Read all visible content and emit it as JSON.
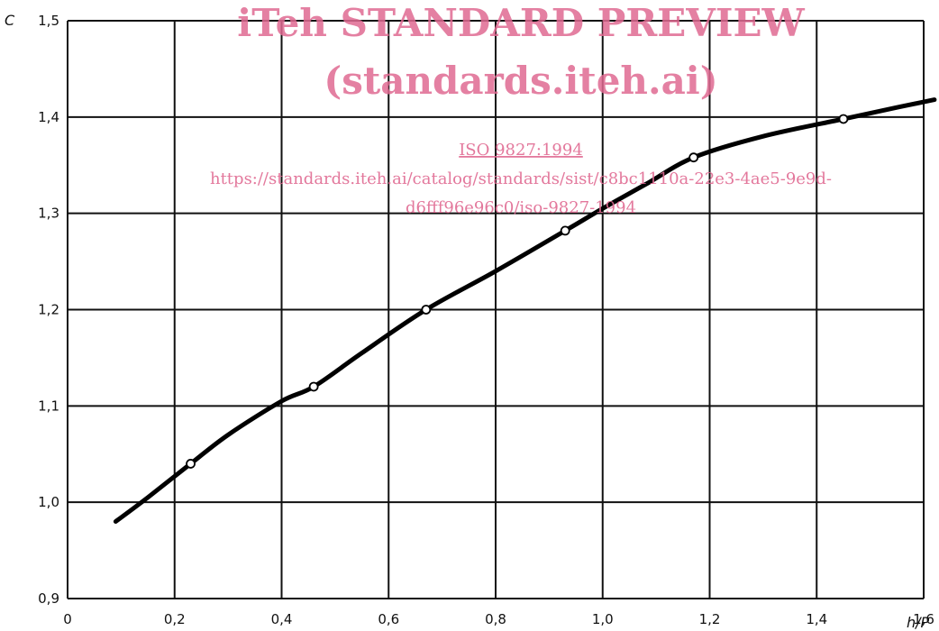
{
  "chart_data": {
    "type": "line",
    "xlabel": "h/P",
    "ylabel": "C",
    "xlim": [
      0,
      1.6
    ],
    "ylim": [
      0.9,
      1.5
    ],
    "grid": true,
    "x_ticks": [
      {
        "value": 0,
        "label": "0"
      },
      {
        "value": 0.2,
        "label": "0,2"
      },
      {
        "value": 0.4,
        "label": "0,4"
      },
      {
        "value": 0.6,
        "label": "0,6"
      },
      {
        "value": 0.8,
        "label": "0,8"
      },
      {
        "value": 1.0,
        "label": "1,0"
      },
      {
        "value": 1.2,
        "label": "1,2"
      },
      {
        "value": 1.4,
        "label": "1,4"
      },
      {
        "value": 1.6,
        "label": "1,6"
      }
    ],
    "y_ticks": [
      {
        "value": 0.9,
        "label": "0,9"
      },
      {
        "value": 1.0,
        "label": "1,0"
      },
      {
        "value": 1.1,
        "label": "1,1"
      },
      {
        "value": 1.2,
        "label": "1,2"
      },
      {
        "value": 1.3,
        "label": "1,3"
      },
      {
        "value": 1.4,
        "label": "1,4"
      },
      {
        "value": 1.5,
        "label": "1,5"
      }
    ],
    "curve": {
      "x": [
        0.09,
        0.15,
        0.23,
        0.3,
        0.4,
        0.46,
        0.55,
        0.67,
        0.8,
        0.93,
        1.0,
        1.08,
        1.17,
        1.3,
        1.45,
        1.55,
        1.62
      ],
      "y": [
        0.98,
        1.005,
        1.04,
        1.07,
        1.105,
        1.12,
        1.155,
        1.2,
        1.24,
        1.282,
        1.305,
        1.33,
        1.358,
        1.38,
        1.398,
        1.41,
        1.418
      ]
    },
    "markers": {
      "x": [
        0.23,
        0.46,
        0.67,
        0.93,
        1.17,
        1.45
      ],
      "y": [
        1.04,
        1.12,
        1.2,
        1.282,
        1.358,
        1.398
      ]
    }
  },
  "watermark": {
    "line1": "iTeh STANDARD PREVIEW",
    "line2": "(standards.iteh.ai)",
    "line3": "ISO 9827:1994",
    "line4": "https://standards.iteh.ai/catalog/standards/sist/c8bc1110a-22e3-4ae5-9e9d-",
    "line5": "d6fff96e96c0/iso-9827-1994",
    "color": "#e06a92"
  }
}
